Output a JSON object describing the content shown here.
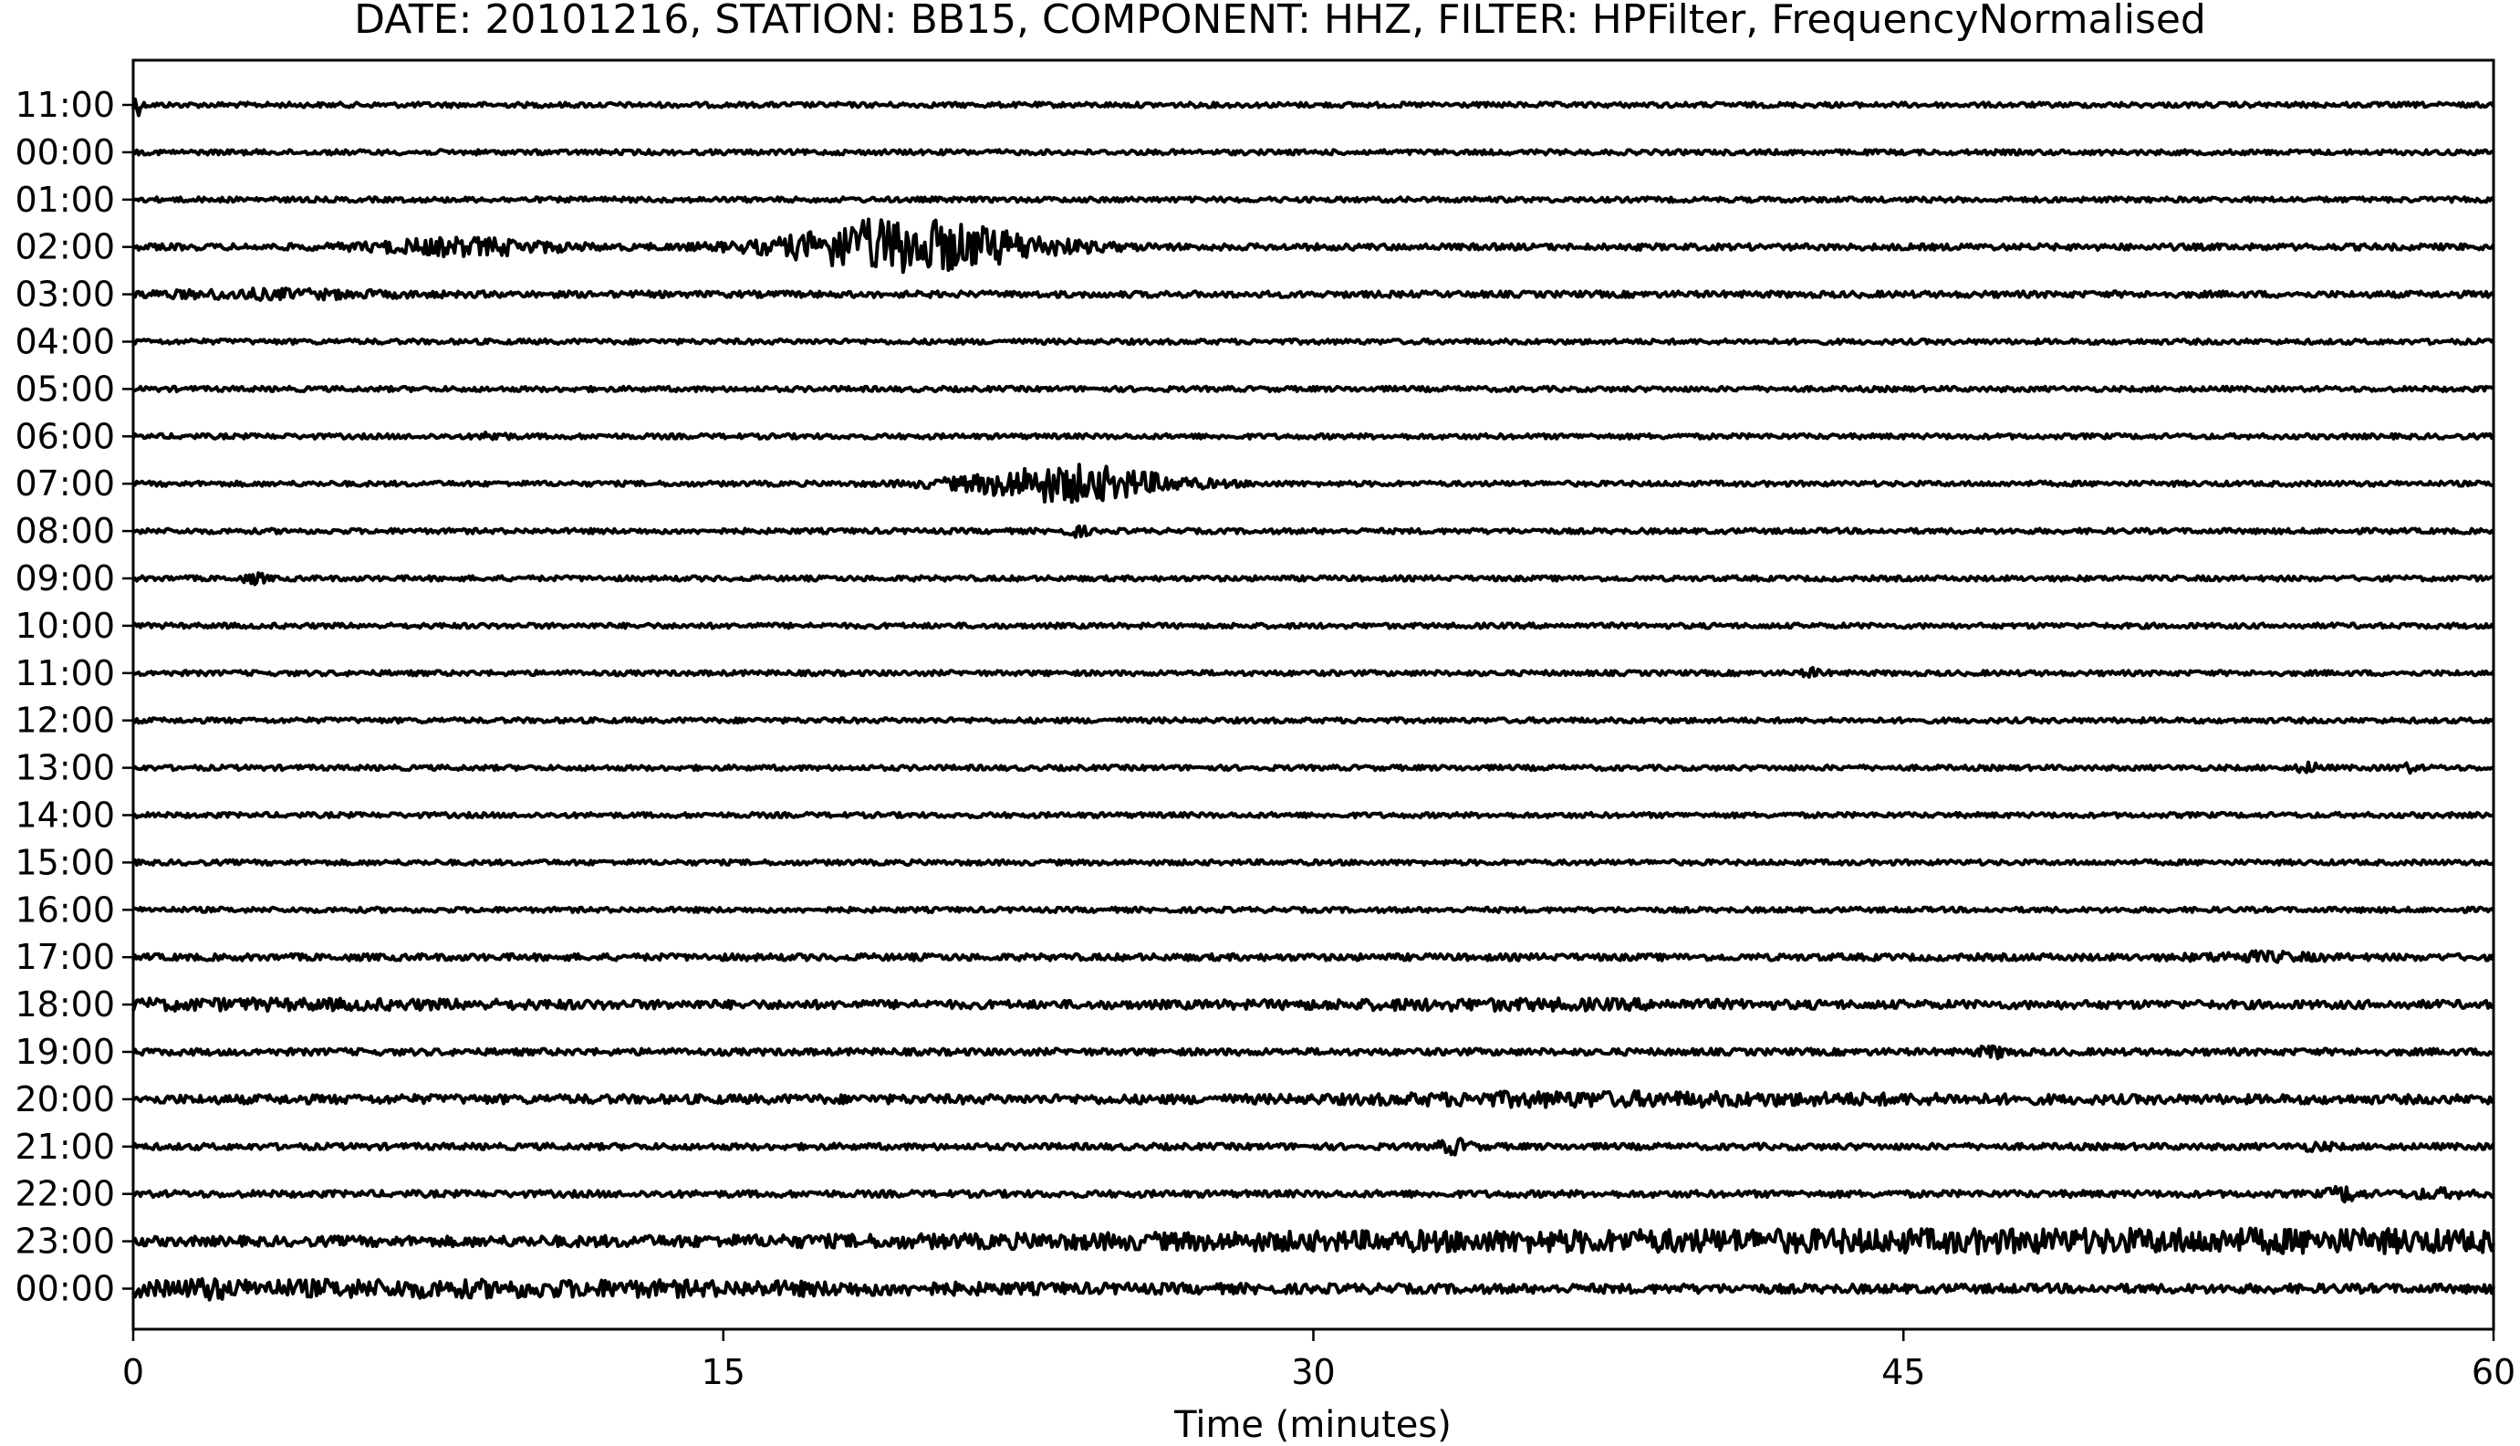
{
  "chart_data": {
    "type": "line",
    "title": "DATE: 20101216, STATION: BB15, COMPONENT: HHZ, FILTER: HPFilter, FrequencyNormalised",
    "xlabel": "Time (minutes)",
    "ylabel": "",
    "xlim": [
      0,
      60
    ],
    "x_ticks": [
      0,
      15,
      30,
      45,
      60
    ],
    "x_tick_labels": [
      "0",
      "15",
      "30",
      "45",
      "60"
    ],
    "grid": false,
    "legend": "none",
    "line_color": "#000000",
    "rows": [
      {
        "label": "11:00",
        "noise": 0.12,
        "events": [
          {
            "t": 0.05,
            "amp": 0.6,
            "dur": 0.1
          }
        ]
      },
      {
        "label": "00:00",
        "noise": 0.12,
        "events": []
      },
      {
        "label": "01:00",
        "noise": 0.12,
        "events": []
      },
      {
        "label": "02:00",
        "noise": 0.15,
        "events": [
          {
            "t": 8.4,
            "amp": 0.35,
            "dur": 1.6
          },
          {
            "t": 18.5,
            "amp": 0.2,
            "dur": 0.8
          },
          {
            "t": 19.9,
            "amp": 1.2,
            "dur": 2.2
          }
        ]
      },
      {
        "label": "03:00",
        "noise": 0.15,
        "events": [
          {
            "t": 3.5,
            "amp": 0.15,
            "dur": 2.0
          }
        ]
      },
      {
        "label": "04:00",
        "noise": 0.12,
        "events": []
      },
      {
        "label": "05:00",
        "noise": 0.12,
        "events": []
      },
      {
        "label": "06:00",
        "noise": 0.12,
        "events": [
          {
            "t": 9.2,
            "amp": 0.2,
            "dur": 0.2
          }
        ]
      },
      {
        "label": "07:00",
        "noise": 0.12,
        "events": [
          {
            "t": 23.8,
            "amp": 0.85,
            "dur": 1.8
          }
        ]
      },
      {
        "label": "08:00",
        "noise": 0.12,
        "events": [
          {
            "t": 24.0,
            "amp": 0.2,
            "dur": 0.2
          }
        ]
      },
      {
        "label": "09:00",
        "noise": 0.12,
        "events": [
          {
            "t": 3.1,
            "amp": 0.2,
            "dur": 0.2
          }
        ]
      },
      {
        "label": "10:00",
        "noise": 0.12,
        "events": []
      },
      {
        "label": "11:00",
        "noise": 0.12,
        "events": [
          {
            "t": 42.7,
            "amp": 0.15,
            "dur": 0.2
          }
        ]
      },
      {
        "label": "12:00",
        "noise": 0.12,
        "events": []
      },
      {
        "label": "13:00",
        "noise": 0.12,
        "events": [
          {
            "t": 55.3,
            "amp": 0.2,
            "dur": 0.2
          },
          {
            "t": 57.8,
            "amp": 0.15,
            "dur": 0.2
          }
        ]
      },
      {
        "label": "14:00",
        "noise": 0.12,
        "events": []
      },
      {
        "label": "15:00",
        "noise": 0.12,
        "events": []
      },
      {
        "label": "16:00",
        "noise": 0.12,
        "events": []
      },
      {
        "label": "17:00",
        "noise": 0.16,
        "events": [
          {
            "t": 54.0,
            "amp": 0.15,
            "dur": 1.0
          }
        ]
      },
      {
        "label": "18:00",
        "noise": 0.2,
        "events": [
          {
            "t": 2.0,
            "amp": 0.12,
            "dur": 6.0
          },
          {
            "t": 35.0,
            "amp": 0.12,
            "dur": 4.0
          }
        ]
      },
      {
        "label": "19:00",
        "noise": 0.16,
        "events": [
          {
            "t": 47.3,
            "amp": 0.2,
            "dur": 0.3
          }
        ]
      },
      {
        "label": "20:00",
        "noise": 0.22,
        "events": [
          {
            "t": 35.5,
            "amp": 0.15,
            "dur": 3.0
          },
          {
            "t": 41.5,
            "amp": 0.12,
            "dur": 4.0
          }
        ]
      },
      {
        "label": "21:00",
        "noise": 0.15,
        "events": [
          {
            "t": 33.6,
            "amp": 0.3,
            "dur": 0.3
          },
          {
            "t": 55.5,
            "amp": 0.12,
            "dur": 0.3
          }
        ]
      },
      {
        "label": "22:00",
        "noise": 0.16,
        "events": [
          {
            "t": 56.2,
            "amp": 0.3,
            "dur": 0.3
          },
          {
            "t": 58.5,
            "amp": 0.15,
            "dur": 0.5
          }
        ]
      },
      {
        "label": "23:00",
        "noise": 0.22,
        "events": [
          {
            "t": 42.5,
            "amp": 0.38,
            "dur": 16.0
          },
          {
            "t": 57.0,
            "amp": 0.15,
            "dur": 6.0
          }
        ]
      },
      {
        "label": "00:00",
        "noise": 0.22,
        "events": [
          {
            "t": 7.5,
            "amp": 0.25,
            "dur": 10.0
          },
          {
            "t": 1.9,
            "amp": 0.2,
            "dur": 0.3
          }
        ]
      }
    ]
  }
}
